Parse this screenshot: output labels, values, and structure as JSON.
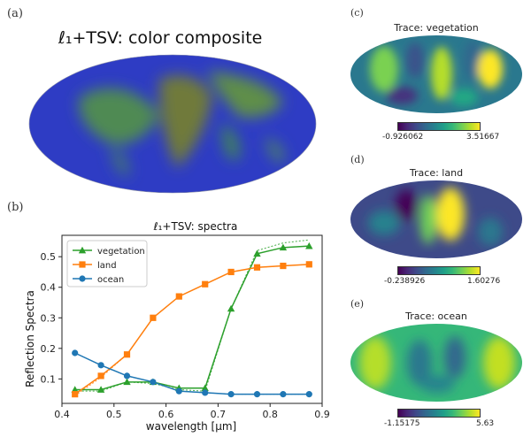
{
  "panels": {
    "a": {
      "label": "(a)",
      "title": "ℓ₁+TSV: color composite"
    },
    "b": {
      "label": "(b)"
    },
    "c": {
      "label": "(c)",
      "title": "Trace: vegetation",
      "colorbar_min": "-0.926062",
      "colorbar_max": "3.51667"
    },
    "d": {
      "label": "(d)",
      "title": "Trace: land",
      "colorbar_min": "-0.238926",
      "colorbar_max": "1.60276"
    },
    "e": {
      "label": "(e)",
      "title": "Trace: ocean",
      "colorbar_min": "-1.15175",
      "colorbar_max": "5.63"
    }
  },
  "chart_data": {
    "type": "line",
    "title": "ℓ₁+TSV: spectra",
    "xlabel": "wavelength [μm]",
    "ylabel": "Reflection Spectra",
    "xlim": [
      0.4,
      0.9
    ],
    "ylim": [
      0.02,
      0.57
    ],
    "xticks": [
      0.4,
      0.5,
      0.6,
      0.7,
      0.8,
      0.9
    ],
    "yticks": [
      0.1,
      0.2,
      0.3,
      0.4,
      0.5
    ],
    "legend_position": "upper-left",
    "grid": false,
    "x": [
      0.425,
      0.475,
      0.525,
      0.575,
      0.625,
      0.675,
      0.725,
      0.775,
      0.825,
      0.875
    ],
    "series": [
      {
        "name": "vegetation",
        "color": "#2ca02c",
        "marker": "triangle",
        "values": [
          0.065,
          0.065,
          0.09,
          0.09,
          0.07,
          0.07,
          0.33,
          0.51,
          0.53,
          0.535
        ],
        "reference": [
          0.06,
          0.06,
          0.09,
          0.085,
          0.065,
          0.06,
          0.33,
          0.52,
          0.545,
          0.555
        ]
      },
      {
        "name": "land",
        "color": "#ff7f0e",
        "marker": "square",
        "values": [
          0.05,
          0.11,
          0.18,
          0.3,
          0.37,
          0.41,
          0.45,
          0.465,
          0.47,
          0.475
        ],
        "reference": [
          0.045,
          0.105,
          0.18,
          0.3,
          0.37,
          0.41,
          0.45,
          0.465,
          0.47,
          0.475
        ]
      },
      {
        "name": "ocean",
        "color": "#1f77b4",
        "marker": "circle",
        "values": [
          0.185,
          0.145,
          0.11,
          0.09,
          0.06,
          0.055,
          0.05,
          0.05,
          0.05,
          0.05
        ],
        "reference": [
          0.185,
          0.145,
          0.11,
          0.09,
          0.06,
          0.055,
          0.05,
          0.05,
          0.05,
          0.05
        ]
      }
    ]
  }
}
